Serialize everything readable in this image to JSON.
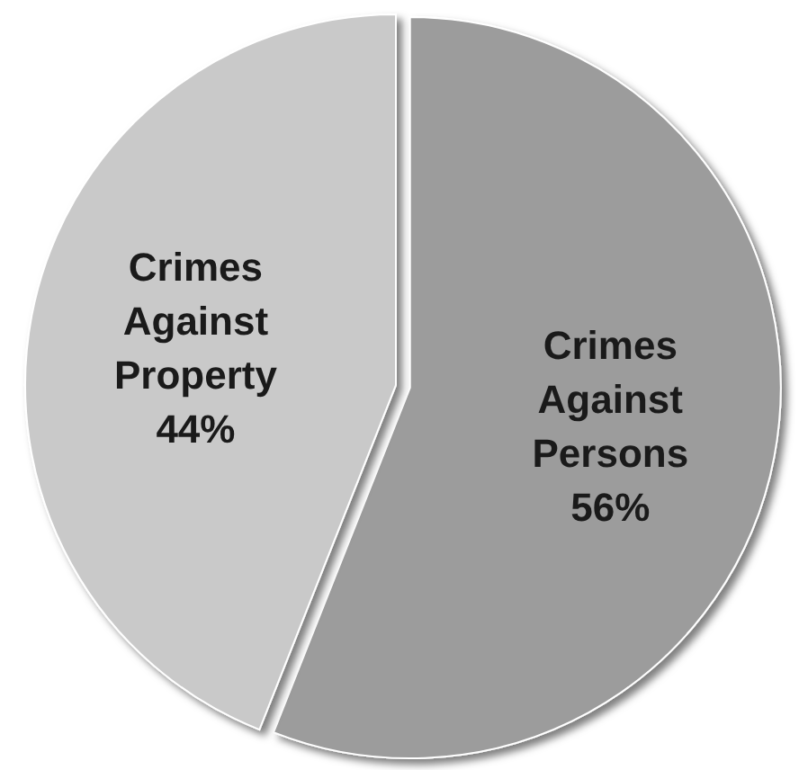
{
  "chart_data": {
    "type": "pie",
    "categories": [
      "Crimes Against Persons",
      "Crimes Against Property"
    ],
    "values": [
      56,
      44
    ],
    "colors": [
      "#9c9c9c",
      "#c9c9c9"
    ],
    "value_labels": [
      "56%",
      "44%"
    ]
  }
}
